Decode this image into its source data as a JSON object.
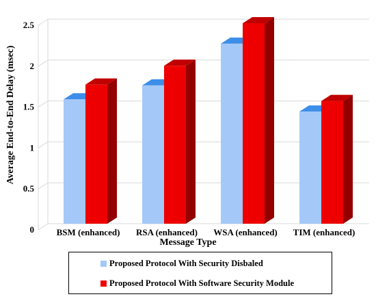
{
  "chart_data": {
    "type": "bar",
    "style": "3d-clustered-column",
    "categories": [
      "BSM (enhanced)",
      "RSA (enhanced)",
      "WSA (enhanced)",
      "TIM (enhanced)"
    ],
    "series": [
      {
        "name": "Proposed Protocol With Security Disbaled",
        "color": "#a4c8f8",
        "top_color": "#3d8ee8",
        "values": [
          1.52,
          1.69,
          2.2,
          1.37
        ]
      },
      {
        "name": "Proposed Protocol With Software Security Module",
        "color": "#ee0000",
        "top_color": "#c00000",
        "values": [
          1.7,
          1.93,
          2.45,
          1.5
        ]
      }
    ],
    "xlabel": "Message Type",
    "ylabel": "Average End-to-End Delay (msec)",
    "ylim": [
      0,
      2.5
    ],
    "yticks": [
      "0",
      "0.5",
      "1",
      "1.5",
      "2",
      "2.5"
    ],
    "grid": true,
    "legend_position": "bottom"
  }
}
